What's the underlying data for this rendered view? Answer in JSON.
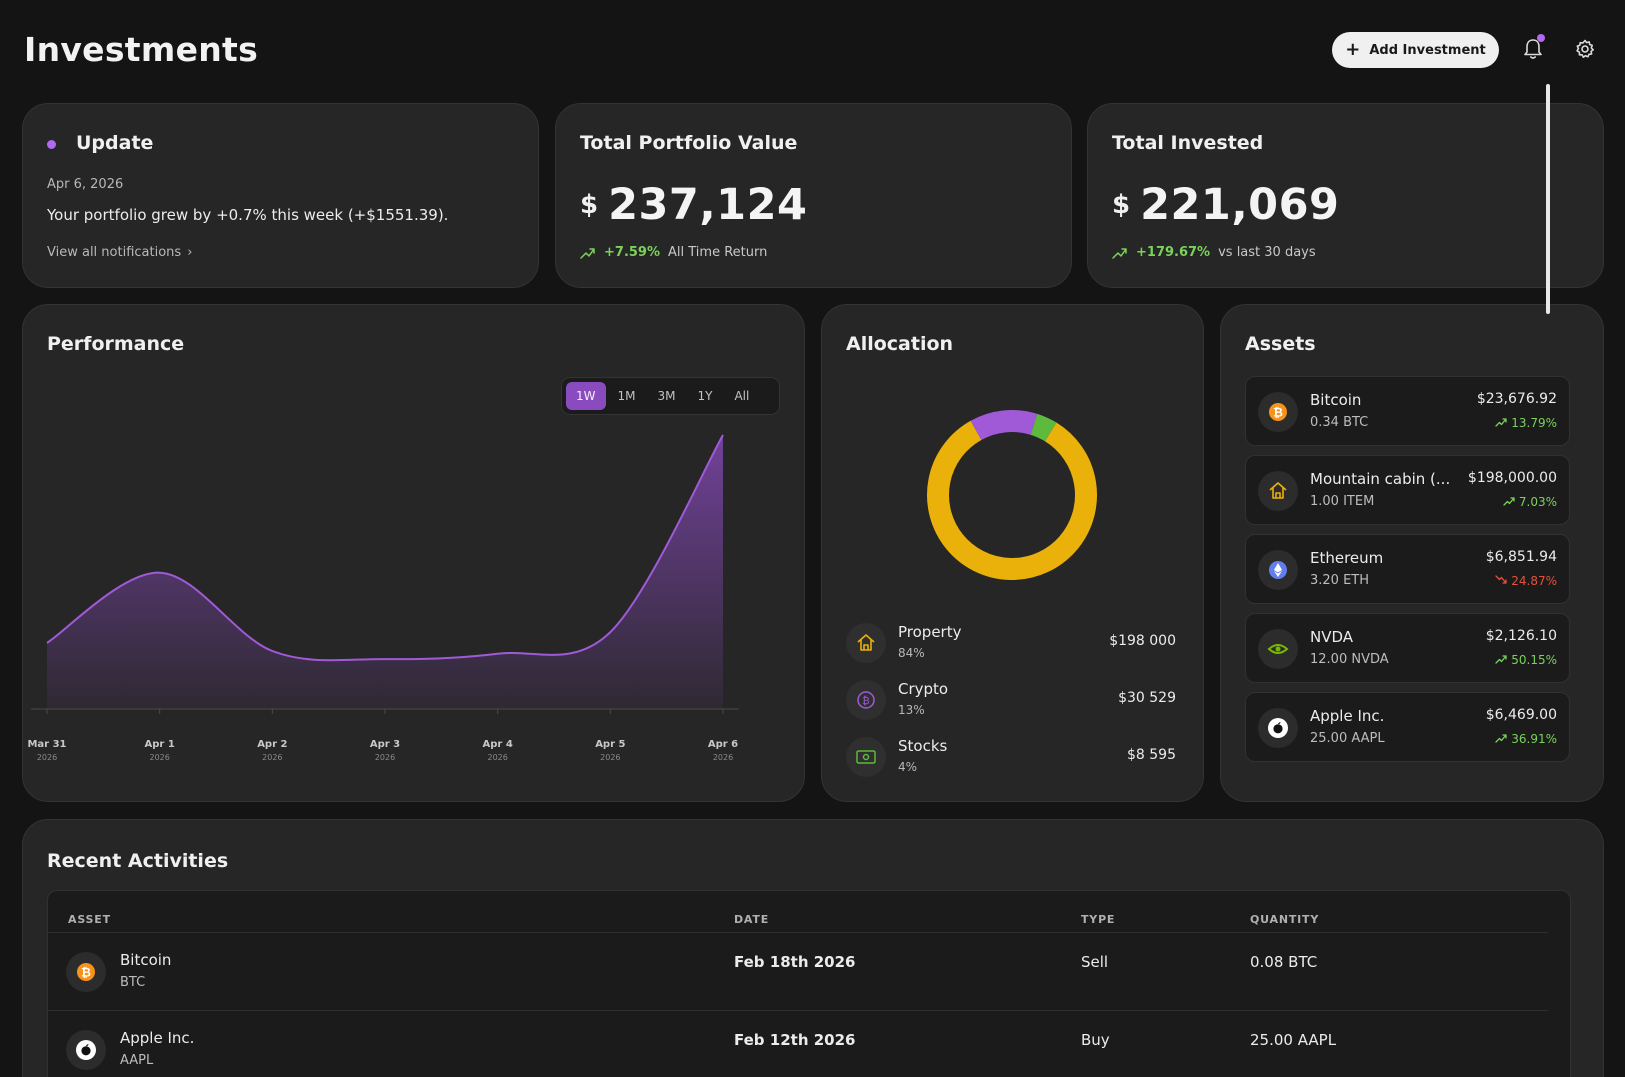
{
  "header": {
    "title": "Investments",
    "add_label": "Add Investment",
    "bell_icon": "bell-icon",
    "settings_icon": "gear-icon"
  },
  "update": {
    "title": "Update",
    "date": "Apr 6, 2026",
    "message": "Your portfolio grew by +0.7% this week (+$1551.39).",
    "link": "View all notifications"
  },
  "portfolio": {
    "title": "Total Portfolio Value",
    "currency": "$",
    "value": "237,124",
    "change": "+7.59%",
    "change_label": "All Time Return"
  },
  "invested": {
    "title": "Total Invested",
    "currency": "$",
    "value": "221,069",
    "change": "+179.67%",
    "change_label": "vs last 30 days"
  },
  "performance": {
    "title": "Performance",
    "ranges": [
      "1W",
      "1M",
      "3M",
      "1Y",
      "All"
    ],
    "active_range": "1W",
    "line_color": "#a05ad8",
    "chart_data": {
      "type": "area",
      "x_labels": [
        {
          "label": "Mar 31",
          "year": "2026"
        },
        {
          "label": "Apr 1",
          "year": "2026"
        },
        {
          "label": "Apr 2",
          "year": "2026"
        },
        {
          "label": "Apr 3",
          "year": "2026"
        },
        {
          "label": "Apr 4",
          "year": "2026"
        },
        {
          "label": "Apr 5",
          "year": "2026"
        },
        {
          "label": "Apr 6",
          "year": "2026"
        }
      ],
      "values": [
        0.23,
        0.49,
        0.2,
        0.17,
        0.19,
        0.27,
        1.0
      ]
    }
  },
  "allocation": {
    "title": "Allocation",
    "items": [
      {
        "name": "Property",
        "percent": "84%",
        "fraction": 0.84,
        "value": "$198 000",
        "color": "#e9b10a",
        "icon": "cabin-icon"
      },
      {
        "name": "Crypto",
        "percent": "13%",
        "fraction": 0.13,
        "value": "$30 529",
        "color": "#a05ad8",
        "icon": "crypto-icon"
      },
      {
        "name": "Stocks",
        "percent": "4%",
        "fraction": 0.04,
        "value": "$8 595",
        "color": "#5dba3c",
        "icon": "banknote-icon"
      }
    ]
  },
  "assets": {
    "title": "Assets",
    "items": [
      {
        "name": "Bitcoin",
        "qty": "0.34 BTC",
        "price": "$23,676.92",
        "change": "13.79%",
        "dir": "up",
        "icon": "bitcoin-icon"
      },
      {
        "name": "Mountain cabin (...",
        "qty": "1.00 ITEM",
        "price": "$198,000.00",
        "change": "7.03%",
        "dir": "up",
        "icon": "cabin-icon"
      },
      {
        "name": "Ethereum",
        "qty": "3.20 ETH",
        "price": "$6,851.94",
        "change": "24.87%",
        "dir": "down",
        "icon": "ethereum-icon"
      },
      {
        "name": "NVDA",
        "qty": "12.00 NVDA",
        "price": "$2,126.10",
        "change": "50.15%",
        "dir": "up",
        "icon": "nvidia-icon"
      },
      {
        "name": "Apple Inc.",
        "qty": "25.00 AAPL",
        "price": "$6,469.00",
        "change": "36.91%",
        "dir": "up",
        "icon": "apple-icon"
      }
    ]
  },
  "recent": {
    "title": "Recent Activities",
    "columns": [
      "ASSET",
      "DATE",
      "TYPE",
      "QUANTITY"
    ],
    "rows": [
      {
        "asset": "Bitcoin",
        "symbol": "BTC",
        "date": "Feb 18th 2026",
        "type": "Sell",
        "quantity": "0.08 BTC",
        "icon": "bitcoin-icon"
      },
      {
        "asset": "Apple Inc.",
        "symbol": "AAPL",
        "date": "Feb 12th 2026",
        "type": "Buy",
        "quantity": "25.00 AAPL",
        "icon": "apple-icon"
      }
    ]
  }
}
